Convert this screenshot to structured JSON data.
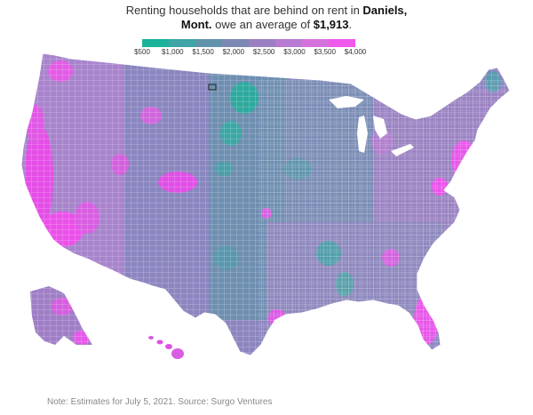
{
  "headline": {
    "line1": "Renting households that are behind on rent in ",
    "place_bold_1": "Daniels,",
    "place_bold_2": "Mont.",
    "line2_mid": " owe an average of ",
    "amount": "$1,913",
    "line2_end": "."
  },
  "legend": {
    "ticks": [
      "$500",
      "$1,000",
      "$1,500",
      "$2,000",
      "$2,500",
      "$3,000",
      "$3,500",
      "$4,000"
    ],
    "colors": [
      "#1bb39a",
      "#3fa5a6",
      "#6193ad",
      "#7b88b3",
      "#9a80c3",
      "#b87bd1",
      "#d573dd",
      "#ef59ec"
    ]
  },
  "map": {
    "region": "United States counties",
    "highlight_color": "#ff33f0",
    "low_color": "#1bb39a"
  },
  "note": "Note: Estimates for July 5, 2021. Source: Surgo Ventures"
}
